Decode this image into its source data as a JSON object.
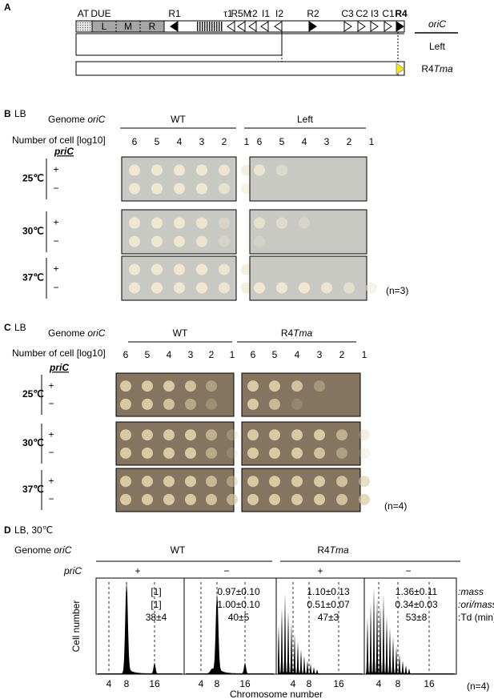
{
  "panel_a": {
    "label": "A",
    "map_labels": [
      "AT",
      "DUE",
      "R1",
      "τ1",
      "R5M",
      "τ2",
      "I1",
      "I2",
      "R2",
      "C3",
      "C2",
      "I3",
      "C1",
      "R4"
    ],
    "due_boxes": [
      "L",
      "M",
      "R"
    ],
    "header": "oriC",
    "row_left": "Left",
    "row_r4tma": {
      "plain": "R4",
      "italic": "Tma"
    }
  },
  "panel_b": {
    "label": "B",
    "medium": "LB",
    "genome_label": {
      "plain": "Genome ",
      "italic": "oriC"
    },
    "cell_label": "Number of cell [log10]",
    "dilutions": [
      6,
      5,
      4,
      3,
      2,
      1
    ],
    "strains": [
      "WT",
      "Left"
    ],
    "gene": "priC",
    "temperatures": [
      "25℃",
      "30℃",
      "37℃"
    ],
    "signs": [
      "+",
      "−"
    ],
    "replicates": "(n=3)"
  },
  "panel_c": {
    "label": "C",
    "medium": "LB",
    "genome_label": {
      "plain": "Genome ",
      "italic": "oriC"
    },
    "cell_label": "Number of cell [log10]",
    "dilutions": [
      6,
      5,
      4,
      3,
      2,
      1
    ],
    "strain_wt": "WT",
    "strain_r4tma": {
      "plain": "R4",
      "italic": "Tma"
    },
    "gene": "priC",
    "temperatures": [
      "25℃",
      "30℃",
      "37℃"
    ],
    "signs": [
      "+",
      "−"
    ],
    "replicates": "(n=4)"
  },
  "panel_d": {
    "label": "D",
    "condition": "LB, 30℃",
    "genome_label": {
      "plain": "Genome ",
      "italic": "oriC"
    },
    "strain_wt": "WT",
    "strain_r4tma": {
      "plain": "R4",
      "italic": "Tma"
    },
    "gene": "priC",
    "signs": [
      "+",
      "−"
    ],
    "stats": [
      [
        "[1]",
        "[1]",
        "38±4"
      ],
      [
        "0.97±0.10",
        "1.00±0.10",
        "40±5"
      ],
      [
        "1.10±0.13",
        "0.51±0.07",
        "47±3"
      ],
      [
        "1.36±0.11",
        "0.34±0.03",
        "53±8"
      ]
    ],
    "stat_legend": [
      ":mass",
      ":ori/mass",
      ":Td (min)"
    ],
    "y_label": "Cell number",
    "x_label": "Chromosome number",
    "x_ticks": [
      4,
      8,
      16
    ],
    "replicates": "(n=4)"
  }
}
